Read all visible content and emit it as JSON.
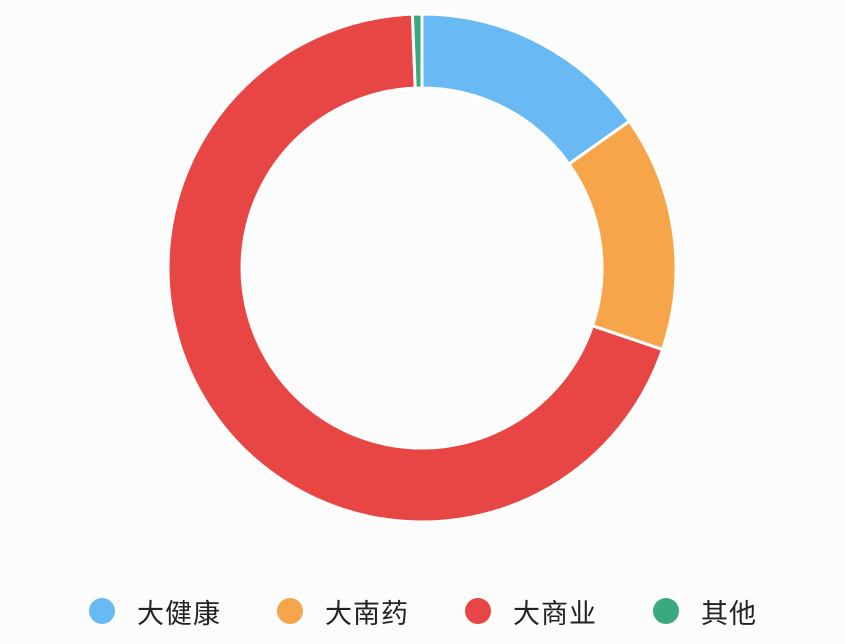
{
  "chart_data": {
    "type": "pie",
    "variant": "donut",
    "title": "",
    "categories": [
      "大健康",
      "大南药",
      "大商业",
      "其他"
    ],
    "values": [
      15.2,
      15.0,
      69.2,
      0.6
    ],
    "colors": [
      "#68b9f4",
      "#f7a54a",
      "#e84545",
      "#3aaa7e"
    ],
    "start_angle_deg": 0,
    "direction": "clockwise",
    "legend_position": "bottom"
  }
}
